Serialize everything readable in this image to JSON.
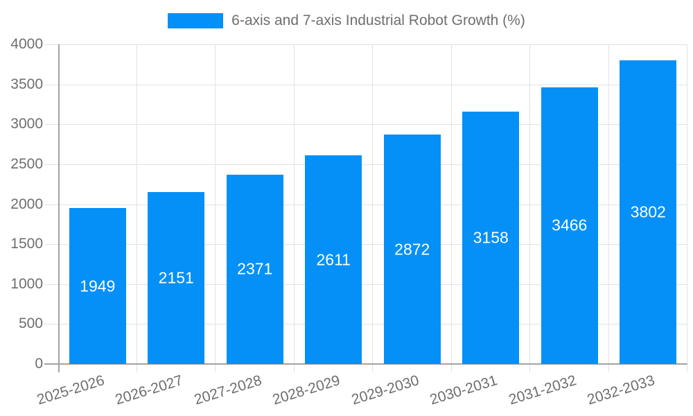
{
  "chart_data": {
    "type": "bar",
    "title": "6-axis and 7-axis Industrial Robot Growth (%)",
    "legend": {
      "position": "top",
      "entries": [
        "6-axis and 7-axis Industrial Robot Growth (%)"
      ]
    },
    "categories": [
      "2025-2026",
      "2026-2027",
      "2027-2028",
      "2028-2029",
      "2029-2030",
      "2030-2031",
      "2031-2032",
      "2032-2033"
    ],
    "values": [
      1949,
      2151,
      2371,
      2611,
      2872,
      3158,
      3466,
      3802
    ],
    "xlabel": "",
    "ylabel": "",
    "ylim": [
      0,
      4000
    ],
    "yticks": [
      0,
      500,
      1000,
      1500,
      2000,
      2500,
      3000,
      3500,
      4000
    ],
    "grid": true,
    "bar_labels_inside": true,
    "colors": {
      "bar": "#0590f8",
      "value_label": "#ffffff",
      "axis_text": "#6e6e6e",
      "grid_line": "#e2e2e2",
      "axis_line": "#a3a3a3",
      "background": "#ffffff"
    }
  }
}
